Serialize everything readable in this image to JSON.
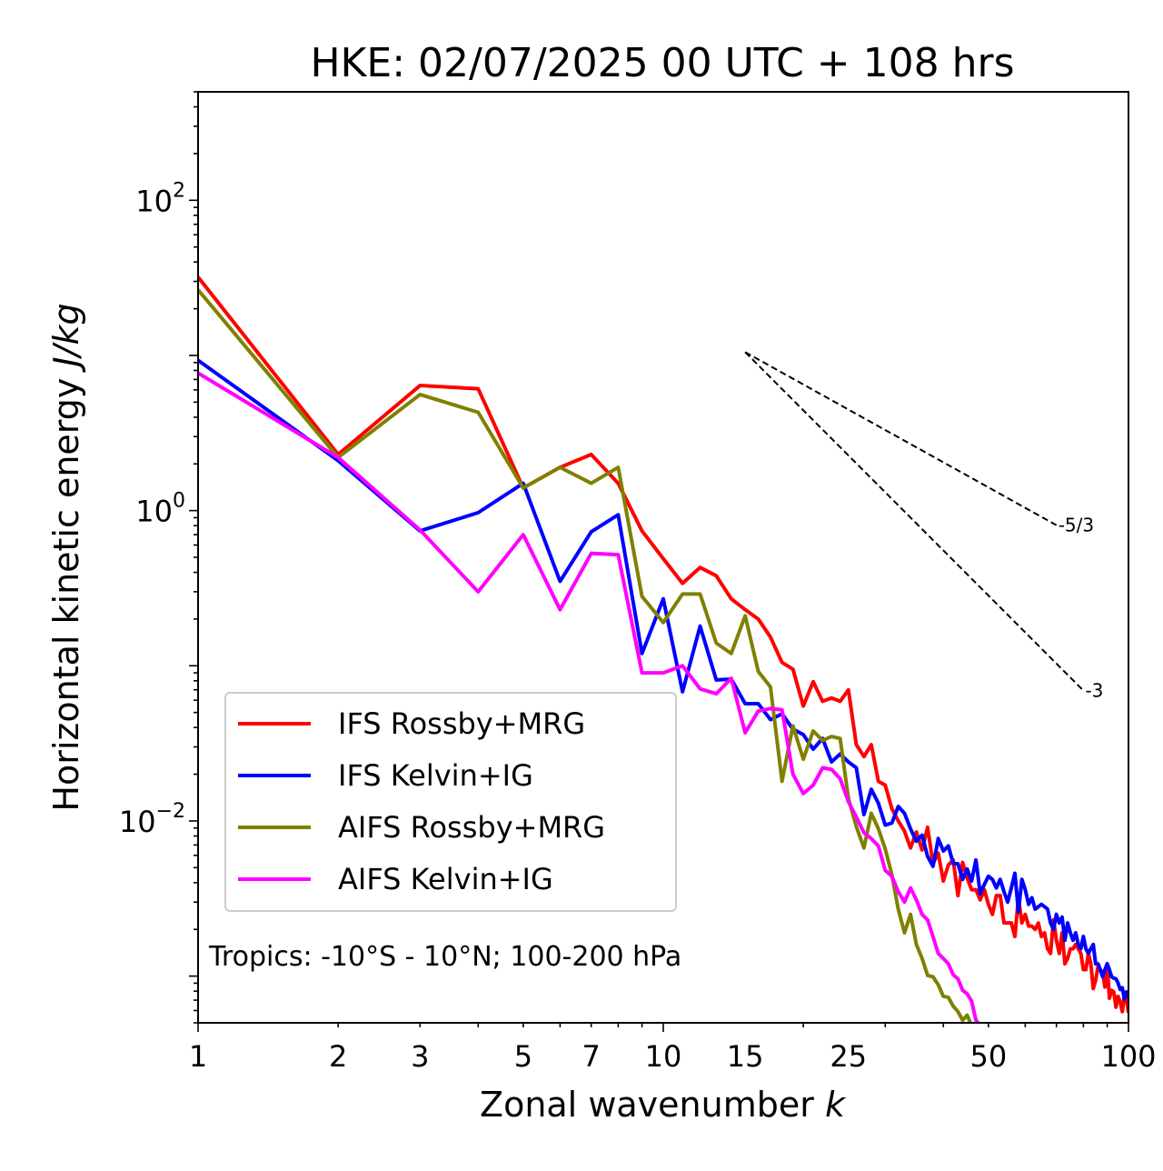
{
  "chart_data": {
    "type": "line",
    "title": "HKE: 02/07/2025 00 UTC + 108 hrs",
    "xlabel": {
      "text": "Zonal wavenumber ",
      "italic": "k"
    },
    "ylabel": {
      "text": "Horizontal kinetic energy ",
      "italic": "J/kg"
    },
    "x_scale": "log",
    "y_scale": "log",
    "xlim": [
      1,
      100
    ],
    "ylim": [
      0.0005,
      500
    ],
    "x_ticks": [
      {
        "value": 1,
        "label": "1"
      },
      {
        "value": 2,
        "label": "2"
      },
      {
        "value": 3,
        "label": "3"
      },
      {
        "value": 5,
        "label": "5"
      },
      {
        "value": 7,
        "label": "7"
      },
      {
        "value": 10,
        "label": "10"
      },
      {
        "value": 15,
        "label": "15"
      },
      {
        "value": 25,
        "label": "25"
      },
      {
        "value": 50,
        "label": "50"
      },
      {
        "value": 100,
        "label": "100"
      }
    ],
    "y_ticks": [
      {
        "value": 100,
        "base": "10",
        "exp": "2"
      },
      {
        "value": 1,
        "base": "10",
        "exp": "0"
      },
      {
        "value": 0.01,
        "base": "10",
        "exp": "−2"
      }
    ],
    "grid": false,
    "legend_position": "lower-left",
    "annotation": "Tropics: -10°S - 10°N; 100-200 hPa",
    "reference_slopes": [
      {
        "label": "-5/3",
        "slope": -1.6667,
        "x_start": 15,
        "y_start": 10.5,
        "x_end": 70
      },
      {
        "label": "-3",
        "slope": -3,
        "x_start": 15,
        "y_start": 10.5,
        "x_end": 80
      }
    ],
    "series": [
      {
        "name": "IFS Rossby+MRG",
        "color": "#ff0000",
        "values": [
          32,
          2.3,
          6.4,
          6.1,
          1.4,
          1.9,
          2.3,
          1.5,
          0.74,
          0.49,
          0.34,
          0.43,
          0.38,
          0.27,
          0.23,
          0.2,
          0.153,
          0.105,
          0.095,
          0.055,
          0.079,
          0.059,
          0.062,
          0.059,
          0.07,
          0.031,
          0.026,
          0.031,
          0.018,
          0.017,
          0.012,
          0.01,
          0.0086,
          0.0067,
          0.0085,
          0.0065,
          0.0091,
          0.0053,
          0.0062,
          0.0041,
          0.0052,
          0.0056,
          0.0033,
          0.0054,
          0.0043,
          0.0036,
          0.0036,
          0.0031,
          0.0036,
          0.0029,
          0.0025,
          0.0033,
          0.0033,
          0.0022,
          0.0022,
          0.0022,
          0.0018,
          0.0032,
          0.0022,
          0.0025,
          0.0021,
          0.0021,
          0.002,
          0.0022,
          0.0018,
          0.0019,
          0.0015,
          0.0014,
          0.0023,
          0.0017,
          0.0014,
          0.0019,
          0.0012,
          0.0013,
          0.0015,
          0.0015,
          0.0016,
          0.0015,
          0.0014,
          0.0011,
          0.0011,
          0.0014,
          0.0012,
          0.00083,
          0.00094,
          0.00115,
          0.0011,
          0.00106,
          0.00085,
          0.0012,
          0.00072,
          0.00081,
          0.00079,
          0.00063,
          0.00074,
          0.00068,
          0.00059,
          0.00076,
          0.00071,
          0.00058
        ]
      },
      {
        "name": "IFS Kelvin+IG",
        "color": "#0000ff",
        "values": [
          9.3,
          2.1,
          0.74,
          0.97,
          1.5,
          0.35,
          0.73,
          0.94,
          0.12,
          0.27,
          0.068,
          0.18,
          0.081,
          0.082,
          0.057,
          0.057,
          0.045,
          0.049,
          0.039,
          0.036,
          0.029,
          0.034,
          0.024,
          0.027,
          0.024,
          0.022,
          0.011,
          0.016,
          0.013,
          0.0094,
          0.0097,
          0.0124,
          0.0112,
          0.0089,
          0.0074,
          0.0081,
          0.0059,
          0.0051,
          0.0077,
          0.0064,
          0.0069,
          0.0053,
          0.0053,
          0.0042,
          0.0049,
          0.0041,
          0.0056,
          0.0034,
          0.0039,
          0.0044,
          0.0042,
          0.0037,
          0.0042,
          0.0035,
          0.003,
          0.0037,
          0.0046,
          0.0026,
          0.0042,
          0.0036,
          0.0029,
          0.0032,
          0.0027,
          0.0028,
          0.0029,
          0.0028,
          0.0027,
          0.0022,
          0.002,
          0.0025,
          0.0022,
          0.0024,
          0.0017,
          0.0022,
          0.0019,
          0.0017,
          0.0019,
          0.0016,
          0.0015,
          0.0018,
          0.0015,
          0.0014,
          0.0015,
          0.0016,
          0.0012,
          0.0012,
          0.0011,
          0.00099,
          0.0011,
          0.0012,
          0.0011,
          0.00099,
          0.00097,
          0.00096,
          0.0009,
          0.00082,
          0.00084,
          0.00071,
          0.00079,
          0.00073
        ]
      },
      {
        "name": "AIFS Rossby+MRG",
        "color": "#808000",
        "values": [
          26.5,
          2.2,
          5.6,
          4.3,
          1.4,
          1.9,
          1.5,
          1.9,
          0.28,
          0.19,
          0.29,
          0.29,
          0.14,
          0.12,
          0.21,
          0.092,
          0.073,
          0.018,
          0.041,
          0.025,
          0.038,
          0.033,
          0.035,
          0.034,
          0.014,
          0.0092,
          0.0067,
          0.0112,
          0.0089,
          0.0066,
          0.0045,
          0.0027,
          0.0019,
          0.0025,
          0.0016,
          0.0013,
          0.00101,
          0.00099,
          0.00088,
          0.00074,
          0.00073,
          0.00064,
          0.00059,
          0.00052,
          0.00056,
          0.00048,
          0.00044
        ]
      },
      {
        "name": "AIFS Kelvin+IG",
        "color": "#ff00ff",
        "values": [
          7.7,
          2.2,
          0.75,
          0.3,
          0.7,
          0.23,
          0.53,
          0.52,
          0.09,
          0.09,
          0.1,
          0.071,
          0.066,
          0.083,
          0.037,
          0.051,
          0.053,
          0.052,
          0.02,
          0.015,
          0.017,
          0.022,
          0.0215,
          0.0187,
          0.0133,
          0.0106,
          0.0084,
          0.0077,
          0.0069,
          0.0048,
          0.0044,
          0.0035,
          0.003,
          0.0037,
          0.0031,
          0.0025,
          0.0023,
          0.0018,
          0.0014,
          0.0013,
          0.0012,
          0.00102,
          0.00096,
          0.00081,
          0.00077,
          0.00069,
          0.00052,
          0.00048,
          0.00046,
          0.00042,
          0.00039
        ]
      }
    ]
  }
}
